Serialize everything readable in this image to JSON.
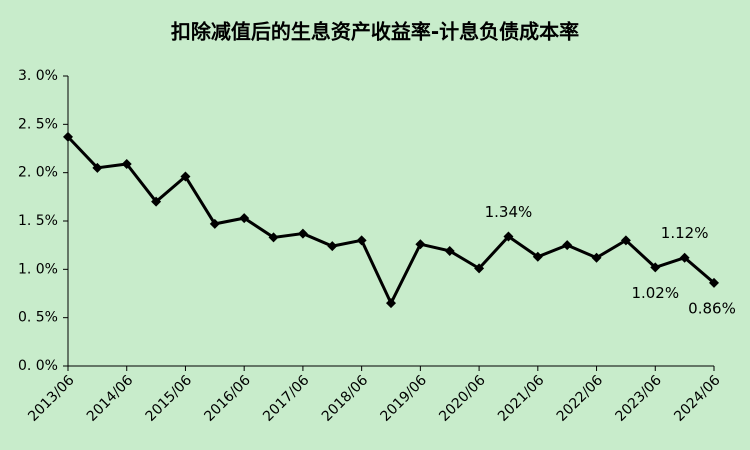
{
  "chart_data": {
    "type": "line",
    "title": "扣除减值后的生息资产收益率-计息负债成本率",
    "categories": [
      "2013/06",
      null,
      "2014/06",
      null,
      "2015/06",
      null,
      "2016/06",
      null,
      "2017/06",
      null,
      "2018/06",
      null,
      "2019/06",
      null,
      "2020/06",
      null,
      "2021/06",
      null,
      "2022/06",
      null,
      "2023/06",
      null,
      "2024/06"
    ],
    "series": [
      {
        "color": "#000000",
        "values": [
          2.37,
          2.05,
          2.09,
          1.7,
          1.96,
          1.47,
          1.53,
          1.33,
          1.37,
          1.24,
          1.3,
          0.65,
          1.26,
          1.19,
          1.01,
          1.34,
          1.13,
          1.25,
          1.12,
          1.3,
          1.02,
          1.12,
          0.86
        ],
        "value_labels": [
          null,
          null,
          null,
          null,
          null,
          null,
          null,
          null,
          null,
          null,
          null,
          null,
          null,
          null,
          null,
          "1.34%",
          null,
          null,
          null,
          null,
          "1.02%",
          "1.12%",
          "0.86%"
        ]
      }
    ],
    "ylim": [
      0,
      3
    ],
    "yticks": [
      {
        "value": 0,
        "label": "0. 0%"
      },
      {
        "value": 0.5,
        "label": "0. 5%"
      },
      {
        "value": 1,
        "label": "1. 0%"
      },
      {
        "value": 1.5,
        "label": "1. 5%"
      },
      {
        "value": 2,
        "label": "2. 0%"
      },
      {
        "value": 2.5,
        "label": "2. 5%"
      },
      {
        "value": 3,
        "label": "3. 0%"
      }
    ]
  }
}
